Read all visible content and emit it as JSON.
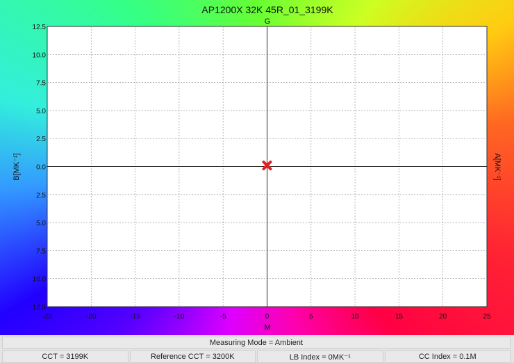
{
  "chart_data": {
    "type": "scatter",
    "title": "AP1200X 32K 45R_01_3199K",
    "top_label": "G",
    "xlabel": "M",
    "ylabel": "B[MK⁻¹]",
    "right_label": "A[MK⁻¹]",
    "xlim": [
      -25,
      25
    ],
    "ylim": [
      -12.5,
      12.5
    ],
    "x_ticks": [
      "-25",
      "-20",
      "-15",
      "-10",
      "-5",
      "0",
      "5",
      "10",
      "15",
      "20",
      "25"
    ],
    "y_ticks": [
      "12.5",
      "10.0",
      "7.5",
      "5.0",
      "2.5",
      "0.0",
      "2.5",
      "5.0",
      "7.5",
      "10.0",
      "12.5"
    ],
    "grid": true,
    "points": [
      {
        "x": 0,
        "y": 0.1,
        "marker": "x",
        "color": "#e02020"
      }
    ]
  },
  "stats": {
    "mode": "Measuring Mode = Ambient",
    "cct": "CCT = 3199K",
    "ref_cct": "Reference CCT = 3200K",
    "lb_index": "LB Index = 0MK⁻¹",
    "cc_index": "CC Index = 0.1M"
  }
}
